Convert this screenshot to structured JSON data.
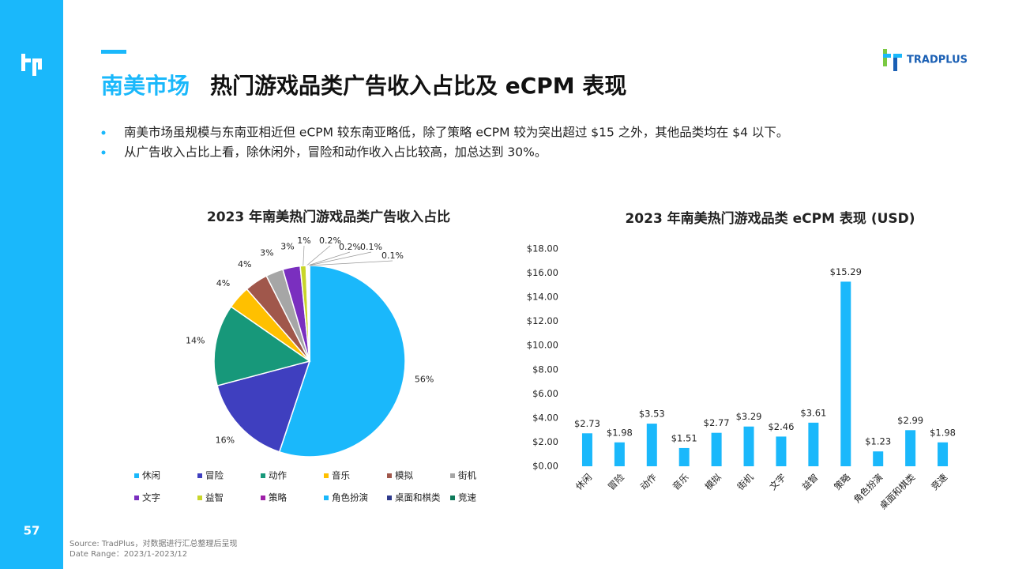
{
  "header": {
    "title_highlight": "南美市场",
    "title": "热门游戏品类广告收入占比及 eCPM 表现",
    "logo": "TRADPLUS"
  },
  "bullets": [
    "南美市场虽规模与东南亚相近但 eCPM 较东南亚略低，除了策略 eCPM 较为突出超过 $15 之外，其他品类均在 $4 以下。",
    "从广告收入占比上看，除休闲外，冒险和动作收入占比较高，加总达到 30%。"
  ],
  "chart_data": [
    {
      "type": "pie",
      "title": "2023 年南美热门游戏品类广告收入占比",
      "categories": [
        "休闲",
        "冒险",
        "动作",
        "音乐",
        "模拟",
        "街机",
        "文字",
        "益智",
        "策略",
        "角色扮演",
        "桌面和棋类",
        "竞速"
      ],
      "values": [
        56,
        16,
        14,
        4,
        4,
        3,
        3,
        1,
        0.2,
        0.2,
        0.1,
        0.1
      ],
      "value_labels": [
        "56%",
        "16%",
        "14%",
        "4%",
        "4%",
        "3%",
        "3%",
        "1%",
        "0.2%",
        "0.2%",
        "0.1%",
        "0.1%"
      ],
      "colors": [
        "#1ab8fb",
        "#3f3fbf",
        "#17987a",
        "#ffc000",
        "#a0574b",
        "#a6a6a6",
        "#7a2fbf",
        "#c9d62a",
        "#9e1fa8",
        "#1ab8fb",
        "#2e3a8c",
        "#0e7a5a"
      ],
      "legend": "bottom"
    },
    {
      "type": "bar",
      "title": "2023 年南美热门游戏品类 eCPM 表现 (USD)",
      "categories": [
        "休闲",
        "冒险",
        "动作",
        "音乐",
        "模拟",
        "街机",
        "文字",
        "益智",
        "策略",
        "角色扮演",
        "桌面和棋类",
        "竞速"
      ],
      "values": [
        2.73,
        1.98,
        3.53,
        1.51,
        2.77,
        3.29,
        2.46,
        3.61,
        15.29,
        1.23,
        2.99,
        1.98
      ],
      "value_labels": [
        "$2.73",
        "$1.98",
        "$3.53",
        "$1.51",
        "$2.77",
        "$3.29",
        "$2.46",
        "$3.61",
        "$15.29",
        "$1.23",
        "$2.99",
        "$1.98"
      ],
      "color": "#1ab8fb",
      "ylim": [
        0,
        18
      ],
      "yticks": [
        {
          "value": 0,
          "label": "$0.00"
        },
        {
          "value": 2,
          "label": "$2.00"
        },
        {
          "value": 4,
          "label": "$4.00"
        },
        {
          "value": 6,
          "label": "$6.00"
        },
        {
          "value": 8,
          "label": "$8.00"
        },
        {
          "value": 10,
          "label": "$10.00"
        },
        {
          "value": 12,
          "label": "$12.00"
        },
        {
          "value": 14,
          "label": "$14.00"
        },
        {
          "value": 16,
          "label": "$16.00"
        },
        {
          "value": 18,
          "label": "$18.00"
        }
      ],
      "grid": false
    }
  ],
  "footer": {
    "source": "Source: TradPlus，对数据进行汇总整理后呈现",
    "date_range": "Date Range：2023/1-2023/12",
    "page": "57"
  }
}
